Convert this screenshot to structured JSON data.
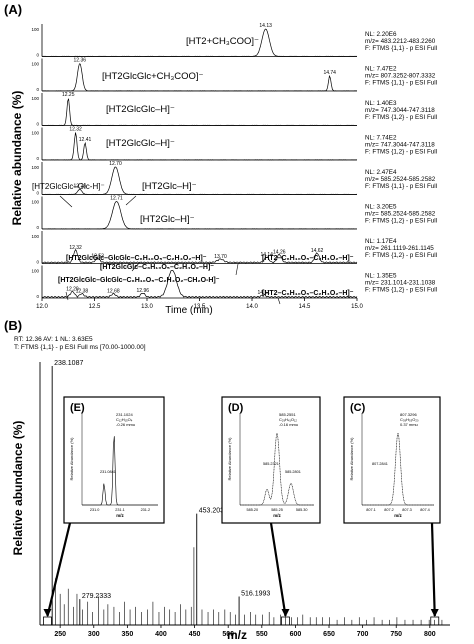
{
  "chart_data": [
    {
      "type": "line",
      "panel_label": "(A)",
      "ylabel": "Relative abundance (%)",
      "xlabel": "Time (min)",
      "xlim": [
        12.0,
        15.0
      ],
      "xticks": [
        "12.0",
        "12.5",
        "13.0",
        "13.5",
        "14.0",
        "14.5",
        "15.0"
      ],
      "traces": [
        {
          "label": "[HT2+CH₃COO]⁻",
          "nl": "NL: 2.20E6",
          "mz": "m/z= 483.2212-483.2260",
          "filter": "F: FTMS {1,1} - p ESI Full",
          "peaks": [
            {
              "rt": 14.13,
              "h": 1.0,
              "w": 0.035,
              "label": "14.13"
            }
          ]
        },
        {
          "label": "[HT2GlcGlc+CH₃COO]⁻",
          "nl": "NL: 7.47E2",
          "mz": "m/z= 807.3252-807.3332",
          "filter": "F: FTMS {1,1} - p ESI Full",
          "peaks": [
            {
              "rt": 12.36,
              "h": 1.0,
              "w": 0.022,
              "label": "12.36"
            },
            {
              "rt": 14.74,
              "h": 0.55,
              "w": 0.012,
              "label": "14.74"
            }
          ]
        },
        {
          "label": "[HT2GlcGlc–H]⁻",
          "nl": "NL: 1.40E3",
          "mz": "m/z= 747.3044-747.3118",
          "filter": "F: FTMS {1,2} - p ESI Full",
          "peaks": [
            {
              "rt": 12.25,
              "h": 1.0,
              "w": 0.012,
              "label": "12.25"
            }
          ]
        },
        {
          "label": "[HT2GlcGlc–H]⁻",
          "nl": "NL: 7.74E2",
          "mz": "m/z= 747.3044-747.3118",
          "filter": "F: FTMS {1,2} - p ESI Full",
          "peaks": [
            {
              "rt": 12.32,
              "h": 1.0,
              "w": 0.013,
              "label": "12.32"
            },
            {
              "rt": 12.41,
              "h": 0.62,
              "w": 0.012,
              "label": "12.41"
            }
          ]
        },
        {
          "label": "[HT2Glc–H]⁻",
          "nl": "NL: 2.47E4",
          "mz": "m/z= 585.2524-585.2582",
          "filter": "F: FTMS {1,1} - p ESI Full",
          "label2": "[HT2GlcGlc–Glc-H]⁻",
          "peaks": [
            {
              "rt": 12.36,
              "h": 0.18,
              "w": 0.02,
              "label": "12.36"
            },
            {
              "rt": 12.7,
              "h": 1.0,
              "w": 0.035,
              "label": "12.70"
            }
          ]
        },
        {
          "label": "[HT2Glc–H]⁻",
          "nl": "NL: 3.20E5",
          "mz": "m/z= 585.2524-585.2582",
          "filter": "F: FTMS {1,2} - p ESI Full",
          "peaks": [
            {
              "rt": 12.71,
              "h": 1.0,
              "w": 0.04,
              "label": "12.71"
            }
          ]
        },
        {
          "label": "[HT2GlcGlc–GlcGlc–C₆H₁₀O₅–C₂H₄O₂–H]⁻",
          "nl": "NL: 1.17E4",
          "mz": "m/z= 261.1119-261.1145",
          "filter": "F: FTMS {1,2} - p ESI Full",
          "label2": "[HT2GlcGlc–C₆H₁₀O₅–C₂H₄O₂–H]⁻",
          "label3": "[HT2–C₆H₁₀O₅–C₂H₄O₂–H]⁻",
          "peaks": [
            {
              "rt": 12.32,
              "h": 0.45,
              "w": 0.02,
              "label": "12.32"
            },
            {
              "rt": 12.53,
              "h": 0.15,
              "w": 0.02,
              "label": "12.53"
            },
            {
              "rt": 13.7,
              "h": 0.12,
              "w": 0.03,
              "label": "13.70"
            },
            {
              "rt": 14.14,
              "h": 0.2,
              "w": 0.02,
              "label": "14.14"
            },
            {
              "rt": 14.26,
              "h": 0.3,
              "w": 0.02,
              "label": "14.26"
            },
            {
              "rt": 14.62,
              "h": 0.35,
              "w": 0.02,
              "label": "14.62"
            }
          ]
        },
        {
          "label": "[HT2GlcGlc–GlcGlc–C₆H₁₀O₅–C₂H₄O₂–CH₂O-H]⁻",
          "nl": "NL: 1.35E5",
          "mz": "m/z= 231.1014-231.1038",
          "filter": "F: FTMS {1,2} - p ESI Full",
          "label2": "[HT2–C₆H₁₀O₅–C₂H₄O₂–H]⁻",
          "peaks": [
            {
              "rt": 12.29,
              "h": 0.2,
              "w": 0.02,
              "label": "12.29"
            },
            {
              "rt": 12.38,
              "h": 0.12,
              "w": 0.02,
              "label": "12.38"
            },
            {
              "rt": 12.68,
              "h": 0.12,
              "w": 0.02,
              "label": "12.68"
            },
            {
              "rt": 12.96,
              "h": 0.14,
              "w": 0.02,
              "label": "12.96"
            },
            {
              "rt": 13.24,
              "h": 1.0,
              "w": 0.04,
              "label": ""
            },
            {
              "rt": 14.11,
              "h": 0.08,
              "w": 0.02,
              "label": "14.11"
            }
          ]
        }
      ]
    },
    {
      "type": "bar",
      "panel_label": "(B)",
      "header1": "RT: 12.36  AV: 1  NL: 3.63E5",
      "header2": "T: FTMS {1,1}  - p ESI Full ms [70.00-1000.00]",
      "ylabel": "Relative abundance (%)",
      "xlabel": "m/z",
      "xlim": [
        220,
        830
      ],
      "xticks": [
        "250",
        "300",
        "350",
        "400",
        "450",
        "500",
        "550",
        "600",
        "650",
        "700",
        "750",
        "800"
      ],
      "labeled_peaks": [
        {
          "mz": 238.1087,
          "h": 100,
          "label": "238.1087"
        },
        {
          "mz": 453.2039,
          "h": 43,
          "label": "453.2039"
        },
        {
          "mz": 516.1993,
          "h": 11,
          "label": "516.1993"
        },
        {
          "mz": 279.2333,
          "h": 10,
          "label": "279.2333"
        }
      ],
      "minor_peaks": [
        [
          243,
          18
        ],
        [
          250,
          12
        ],
        [
          256,
          8
        ],
        [
          262,
          14
        ],
        [
          270,
          7
        ],
        [
          275,
          12
        ],
        [
          283,
          6
        ],
        [
          291,
          9
        ],
        [
          298,
          5
        ],
        [
          307,
          11
        ],
        [
          315,
          6
        ],
        [
          321,
          8
        ],
        [
          330,
          7
        ],
        [
          338,
          5
        ],
        [
          346,
          9
        ],
        [
          354,
          6
        ],
        [
          362,
          7
        ],
        [
          371,
          5
        ],
        [
          380,
          6
        ],
        [
          388,
          9
        ],
        [
          397,
          5
        ],
        [
          405,
          7
        ],
        [
          413,
          6
        ],
        [
          421,
          5
        ],
        [
          429,
          8
        ],
        [
          437,
          6
        ],
        [
          445,
          7
        ],
        [
          449,
          30
        ],
        [
          461,
          6
        ],
        [
          470,
          5
        ],
        [
          478,
          6
        ],
        [
          486,
          5
        ],
        [
          495,
          6
        ],
        [
          503,
          5
        ],
        [
          511,
          4
        ],
        [
          524,
          4
        ],
        [
          533,
          5
        ],
        [
          541,
          4
        ],
        [
          551,
          4
        ],
        [
          561,
          5
        ],
        [
          568,
          3
        ],
        [
          578,
          4
        ],
        [
          585,
          3
        ],
        [
          594,
          3
        ],
        [
          603,
          3
        ],
        [
          611,
          4
        ],
        [
          622,
          3
        ],
        [
          631,
          3
        ],
        [
          640,
          3
        ],
        [
          651,
          3
        ],
        [
          662,
          2
        ],
        [
          673,
          3
        ],
        [
          684,
          2
        ],
        [
          695,
          3
        ],
        [
          706,
          2
        ],
        [
          717,
          3
        ],
        [
          729,
          2
        ],
        [
          740,
          2
        ],
        [
          751,
          3
        ],
        [
          763,
          2
        ],
        [
          775,
          2
        ],
        [
          787,
          2
        ],
        [
          799,
          2
        ],
        [
          807,
          2
        ],
        [
          818,
          2
        ]
      ],
      "insets": [
        {
          "id": "(E)",
          "peak_label": "231.1024",
          "ion": "C₁₂H₁₅O₄",
          "mmu": "-0.26 mmu",
          "minor_label": "231.0841",
          "xticks": [
            "231.0",
            "231.1",
            "231.2"
          ],
          "xlabel": "m/z",
          "ylabel": "Relative Abundance (%)",
          "target_mz": 231.1
        },
        {
          "id": "(D)",
          "peak_label": "585.2551",
          "ion": "C₂₉H₄₁O₁₂",
          "mmu": "-0.16 mmu",
          "minor_label": "585.2321",
          "minor_label2": "585.2801",
          "xticks": [
            "585.20",
            "585.25",
            "585.30"
          ],
          "xlabel": "m/z",
          "ylabel": "Relative Abundance (%)",
          "target_mz": 585.25
        },
        {
          "id": "(C)",
          "peak_label": "807.3296",
          "ion": "C₃₉H₅₃O₂₀",
          "mmu": "0.37 mmu",
          "minor_label": "807.2841",
          "xticks": [
            "807.1",
            "807.2",
            "807.3",
            "807.4"
          ],
          "xlabel": "m/z",
          "ylabel": "Relative Abundance (%)",
          "target_mz": 807.33
        }
      ]
    }
  ]
}
